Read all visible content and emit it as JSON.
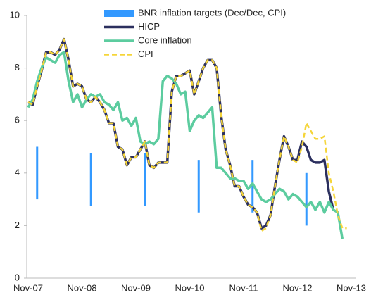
{
  "chart_data": {
    "type": "line",
    "categories": [
      "Nov-07",
      null,
      null,
      null,
      null,
      null,
      null,
      null,
      null,
      null,
      null,
      null,
      "Nov-08",
      null,
      null,
      null,
      null,
      null,
      null,
      null,
      null,
      null,
      null,
      null,
      "Nov-09",
      null,
      null,
      null,
      null,
      null,
      null,
      null,
      null,
      null,
      null,
      null,
      "Nov-10",
      null,
      null,
      null,
      null,
      null,
      null,
      null,
      null,
      null,
      null,
      null,
      "Nov-11",
      null,
      null,
      null,
      null,
      null,
      null,
      null,
      null,
      null,
      null,
      null,
      "Nov-12",
      null,
      null,
      null,
      null,
      null,
      null,
      null,
      null,
      null,
      null,
      null,
      "Nov-13"
    ],
    "ylim": [
      0,
      10
    ],
    "yticks": [
      0,
      2,
      4,
      6,
      8,
      10
    ],
    "grid": false,
    "targets": {
      "name": "BNR inflation targets  (Dec/Dec, CPI)",
      "color": "#3399ff",
      "low": [
        null,
        null,
        3,
        null,
        null,
        null,
        null,
        null,
        null,
        null,
        null,
        null,
        null,
        null,
        2.75,
        null,
        null,
        null,
        null,
        null,
        null,
        null,
        null,
        null,
        null,
        null,
        2.75,
        null,
        null,
        null,
        null,
        null,
        null,
        null,
        null,
        null,
        null,
        null,
        2.5,
        null,
        null,
        null,
        null,
        null,
        null,
        null,
        null,
        null,
        null,
        null,
        2.5,
        null,
        null,
        null,
        null,
        null,
        null,
        null,
        null,
        null,
        null,
        null,
        2,
        null,
        null,
        null,
        null,
        null,
        null,
        null,
        null,
        null,
        null
      ],
      "high": [
        null,
        null,
        5,
        null,
        null,
        null,
        null,
        null,
        null,
        null,
        null,
        null,
        null,
        null,
        4.75,
        null,
        null,
        null,
        null,
        null,
        null,
        null,
        null,
        null,
        null,
        null,
        4.75,
        null,
        null,
        null,
        null,
        null,
        null,
        null,
        null,
        null,
        null,
        null,
        4.5,
        null,
        null,
        null,
        null,
        null,
        null,
        null,
        null,
        null,
        null,
        null,
        4.5,
        null,
        null,
        null,
        null,
        null,
        null,
        null,
        null,
        null,
        null,
        null,
        4,
        null,
        null,
        null,
        null,
        null,
        null,
        null,
        null,
        null,
        null
      ]
    },
    "series": [
      {
        "name": "HICP",
        "color": "#2b2f5e",
        "dashed": false,
        "values": [
          6.7,
          6.6,
          7.3,
          7.9,
          8.6,
          8.6,
          8.5,
          8.7,
          9.1,
          8.3,
          7.3,
          7.4,
          7.3,
          6.8,
          6.7,
          6.9,
          6.7,
          6.4,
          5.9,
          5.9,
          5.0,
          4.9,
          4.3,
          4.6,
          4.6,
          4.9,
          5.2,
          4.3,
          4.2,
          4.4,
          4.4,
          4.4,
          7.1,
          7.7,
          7.7,
          7.8,
          7.9,
          7.0,
          7.5,
          8.0,
          8.3,
          8.3,
          8.0,
          6.2,
          4.9,
          4.3,
          3.5,
          3.5,
          3.1,
          2.8,
          2.7,
          2.5,
          1.9,
          2.0,
          2.4,
          3.5,
          4.5,
          5.4,
          5.0,
          4.5,
          4.5,
          5.2,
          5.0,
          4.5,
          4.4,
          4.4,
          4.5,
          3.3,
          2.6,
          null,
          null,
          null,
          null
        ]
      },
      {
        "name": "Core inflation",
        "color": "#5ccc9f",
        "dashed": false,
        "values": [
          6.5,
          6.8,
          7.5,
          8.0,
          8.4,
          8.3,
          8.2,
          8.5,
          8.6,
          7.5,
          6.7,
          7.0,
          6.5,
          6.8,
          7.0,
          6.9,
          7.0,
          6.7,
          6.6,
          6.4,
          6.7,
          6.0,
          6.1,
          5.8,
          6.1,
          5.2,
          5.1,
          5.2,
          5.1,
          5.3,
          7.5,
          7.7,
          7.6,
          7.4,
          7.0,
          7.1,
          5.6,
          6.0,
          6.2,
          6.1,
          6.3,
          6.5,
          4.2,
          4.2,
          4.0,
          3.8,
          3.8,
          3.7,
          3.7,
          3.4,
          3.6,
          3.3,
          3.0,
          2.9,
          3.0,
          3.2,
          3.4,
          3.3,
          3.0,
          3.2,
          3.1,
          2.9,
          2.7,
          2.9,
          2.6,
          2.9,
          2.5,
          2.9,
          2.6,
          2.5,
          1.5,
          null,
          null
        ]
      },
      {
        "name": "CPI",
        "color": "#f5d53a",
        "dashed": true,
        "values": [
          6.7,
          6.6,
          7.3,
          7.9,
          8.6,
          8.6,
          8.5,
          8.7,
          9.1,
          8.3,
          7.3,
          7.4,
          7.3,
          6.8,
          6.7,
          6.9,
          6.7,
          6.4,
          5.9,
          5.9,
          5.0,
          4.9,
          4.3,
          4.6,
          4.6,
          4.9,
          5.2,
          4.3,
          4.2,
          4.4,
          4.4,
          4.4,
          7.1,
          7.7,
          7.7,
          7.8,
          7.9,
          7.0,
          7.5,
          8.0,
          8.3,
          8.3,
          8.0,
          6.2,
          4.9,
          4.3,
          3.5,
          3.5,
          3.1,
          2.8,
          2.7,
          2.5,
          1.8,
          1.9,
          2.4,
          3.5,
          4.5,
          5.4,
          5.0,
          4.5,
          4.4,
          5.0,
          5.9,
          5.6,
          5.3,
          5.3,
          5.4,
          4.0,
          3.3,
          2.4,
          1.9,
          1.9,
          null
        ]
      }
    ]
  }
}
